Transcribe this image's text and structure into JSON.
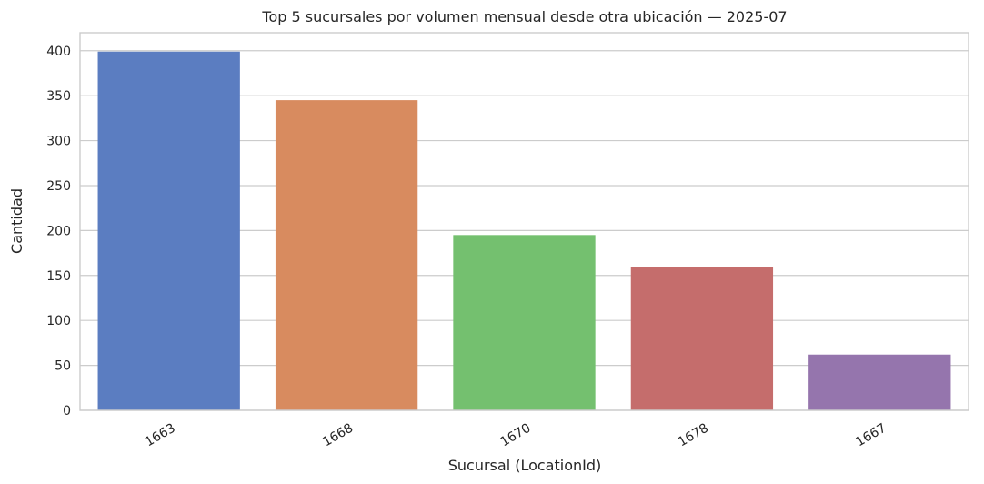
{
  "chart_data": {
    "type": "bar",
    "title": "Top 5 sucursales por volumen mensual desde otra ubicación — 2025-07",
    "xlabel": "Sucursal (LocationId)",
    "ylabel": "Cantidad",
    "categories": [
      "1663",
      "1668",
      "1670",
      "1678",
      "1667"
    ],
    "values": [
      399,
      345,
      195,
      159,
      62
    ],
    "colors": [
      "#5b7dc1",
      "#d88b5f",
      "#74c06f",
      "#c56d6c",
      "#9575ad"
    ],
    "ylim": [
      0,
      420
    ],
    "yticks": [
      0,
      50,
      100,
      150,
      200,
      250,
      300,
      350,
      400
    ],
    "grid": true
  }
}
